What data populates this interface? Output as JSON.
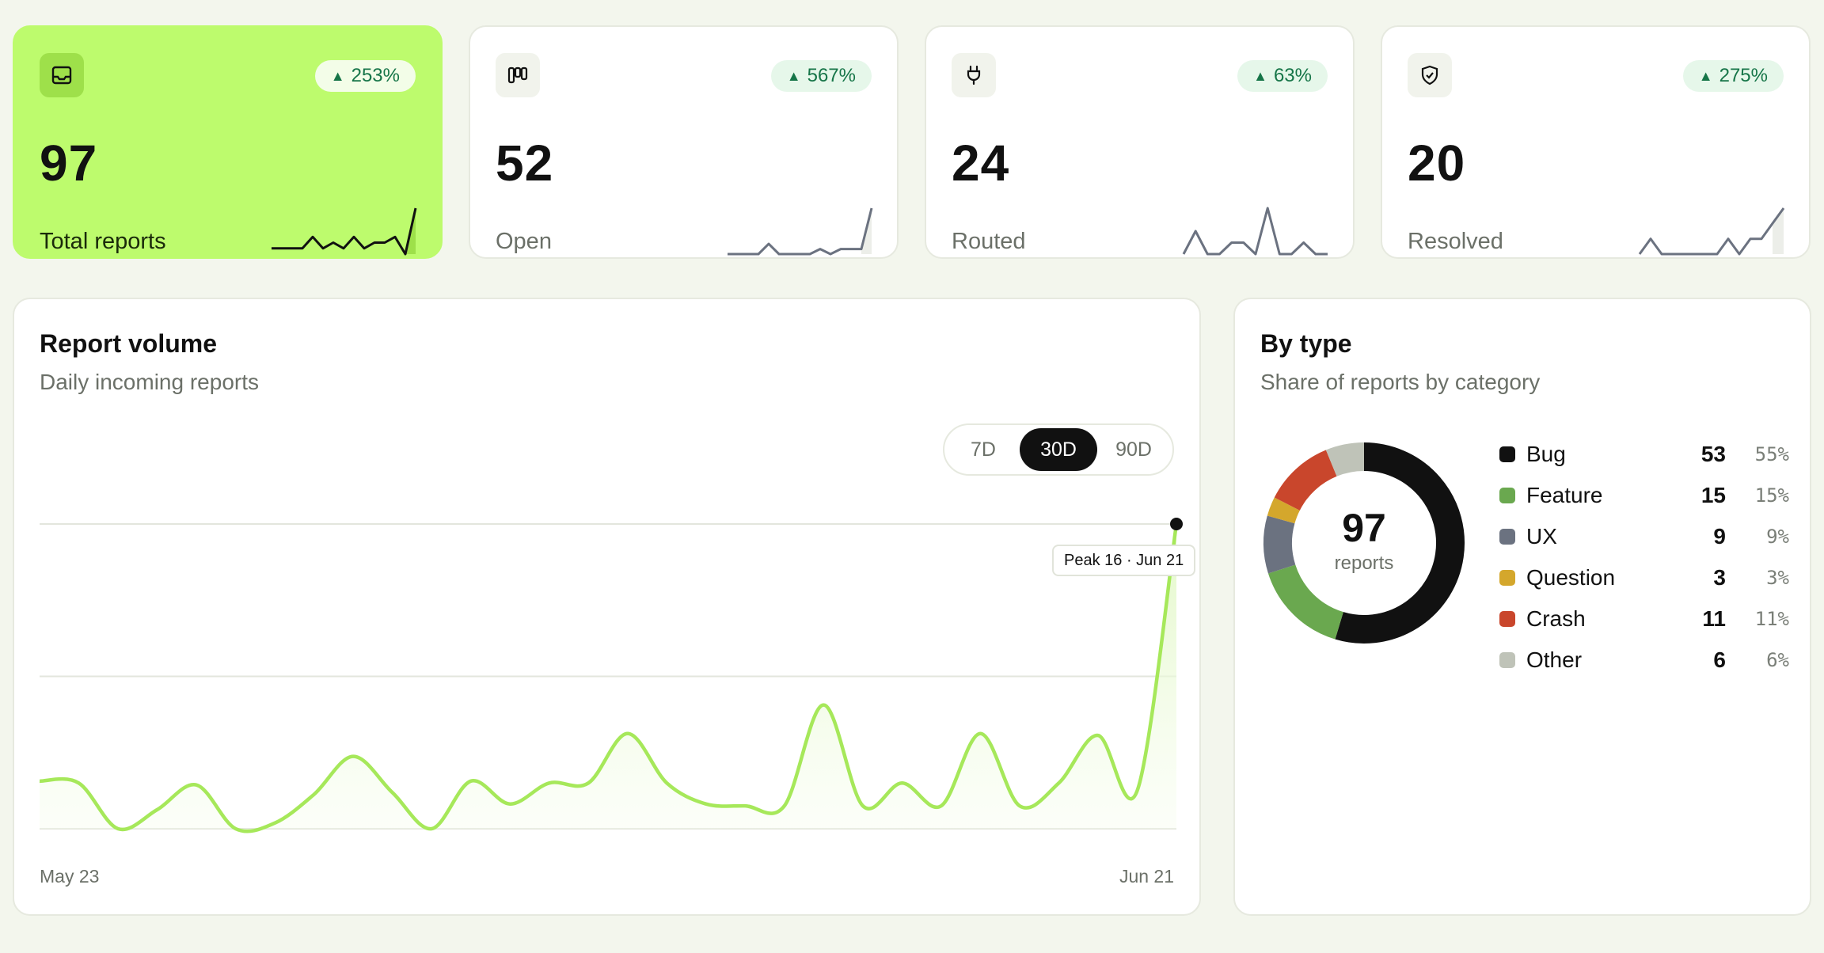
{
  "stats": [
    {
      "value": "97",
      "label": "Total reports",
      "delta": "253%",
      "icon": "inbox-icon",
      "trend": [
        1,
        1,
        1,
        1,
        3,
        1,
        2,
        1,
        3,
        1,
        2,
        2,
        3,
        0,
        8
      ]
    },
    {
      "value": "52",
      "label": "Open",
      "delta": "567%",
      "icon": "kanban-icon",
      "trend": [
        1,
        1,
        1,
        1,
        3,
        1,
        1,
        1,
        1,
        2,
        1,
        2,
        2,
        2,
        10
      ]
    },
    {
      "value": "24",
      "label": "Routed",
      "delta": "63%",
      "icon": "plug-icon",
      "trend": [
        0,
        2,
        0,
        0,
        1,
        1,
        0,
        4,
        0,
        0,
        1,
        0,
        0
      ]
    },
    {
      "value": "20",
      "label": "Resolved",
      "delta": "275%",
      "icon": "shield-check-icon",
      "trend": [
        0,
        1,
        0,
        0,
        0,
        0,
        0,
        0,
        1,
        0,
        1,
        1,
        2,
        3
      ]
    }
  ],
  "volume": {
    "title": "Report volume",
    "subtitle": "Daily incoming reports",
    "ranges": [
      "7D",
      "30D",
      "90D"
    ],
    "active_range": "30D",
    "tooltip": "Peak 16 · Jun 21"
  },
  "by_type": {
    "title": "By type",
    "subtitle": "Share of reports by category",
    "total": "97",
    "total_label": "reports",
    "items": [
      {
        "name": "Bug",
        "count": "53",
        "pct": "55%",
        "color": "#111111"
      },
      {
        "name": "Feature",
        "count": "15",
        "pct": "15%",
        "color": "#6aa84f"
      },
      {
        "name": "UX",
        "count": "9",
        "pct": "9%",
        "color": "#6b7280"
      },
      {
        "name": "Question",
        "count": "3",
        "pct": "3%",
        "color": "#d4a72c"
      },
      {
        "name": "Crash",
        "count": "11",
        "pct": "11%",
        "color": "#c9462c"
      },
      {
        "name": "Other",
        "count": "6",
        "pct": "6%",
        "color": "#bfc3b8"
      }
    ]
  },
  "chart_data": [
    {
      "type": "line",
      "title": "Report volume",
      "xlabel": "",
      "ylabel": "",
      "x_start": "May 23",
      "x_end": "Jun 21",
      "values": [
        2.5,
        2.4,
        0.0,
        1.0,
        2.3,
        0.0,
        0.3,
        1.8,
        3.8,
        1.9,
        0.0,
        2.5,
        1.3,
        2.4,
        2.4,
        5.0,
        2.4,
        1.3,
        1.2,
        1.2,
        6.5,
        1.2,
        2.4,
        1.2,
        5.0,
        1.2,
        2.4,
        4.9,
        2.0,
        16
      ],
      "ylim": [
        0,
        16
      ],
      "grid": true,
      "color": "#a6e85a"
    },
    {
      "type": "pie",
      "title": "By type",
      "categories": [
        "Bug",
        "Feature",
        "UX",
        "Question",
        "Crash",
        "Other"
      ],
      "values": [
        53,
        15,
        9,
        3,
        11,
        6
      ]
    }
  ],
  "colors": {
    "accent": "#bdfb6d",
    "positive": "#167548",
    "line": "#a6e85a"
  }
}
